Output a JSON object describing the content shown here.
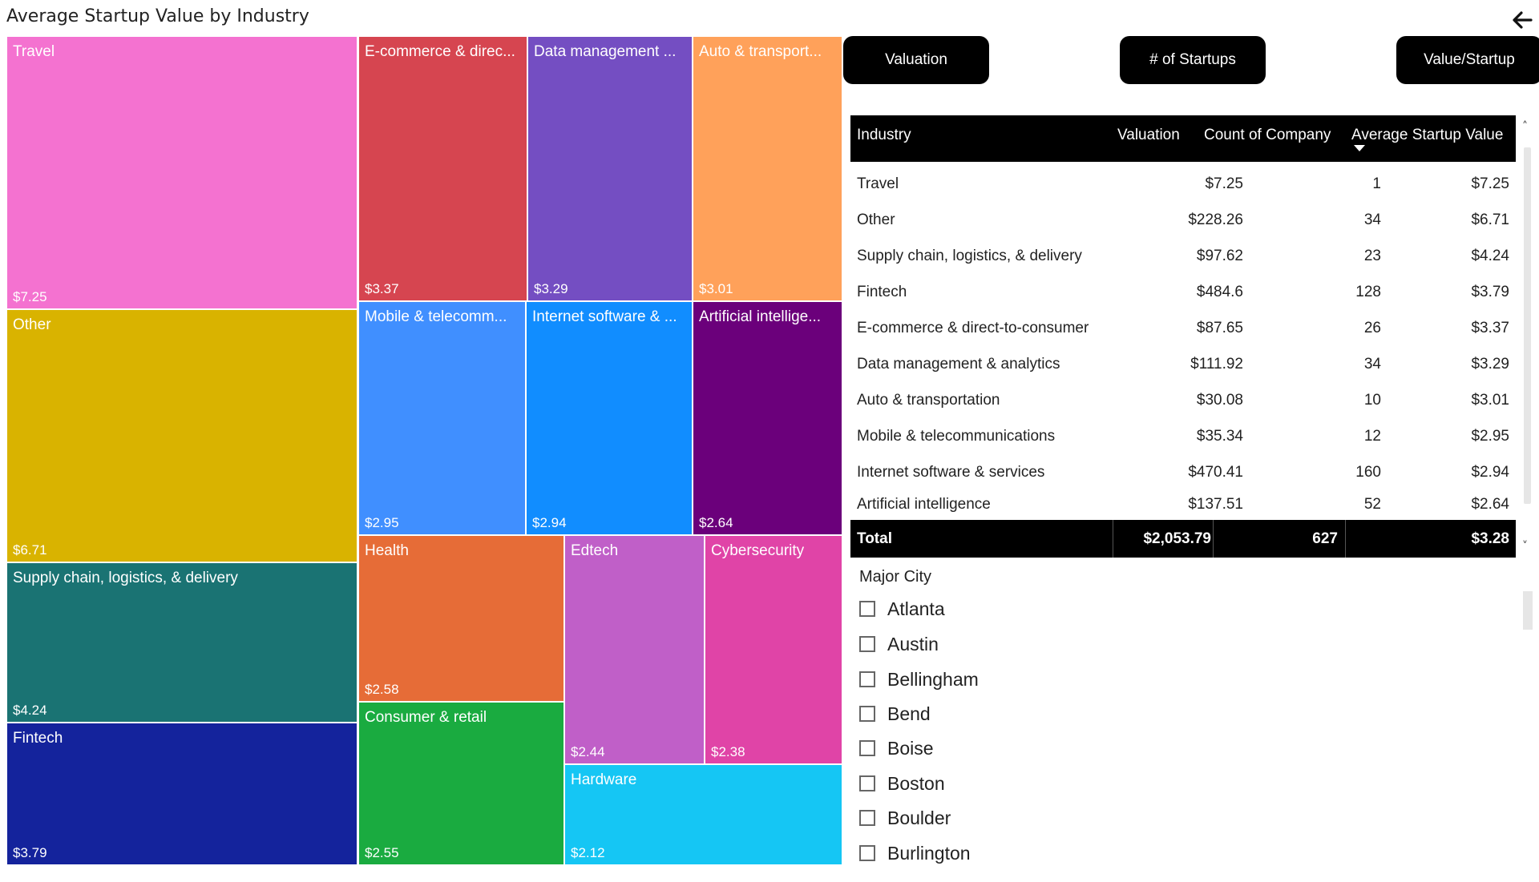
{
  "title": "Average Startup Value by Industry",
  "nav": {
    "back_icon": "arrow-left-icon"
  },
  "buttons": {
    "valuation": "Valuation",
    "startups": "# of Startups",
    "value_per_startup": "Value/Startup"
  },
  "treemap": [
    {
      "label": "Travel",
      "value": "$7.25",
      "color": "#F472D0"
    },
    {
      "label": "Other",
      "value": "$6.71",
      "color": "#D9B300"
    },
    {
      "label": "Supply chain, logistics, & delivery",
      "value": "$4.24",
      "color": "#1A7373"
    },
    {
      "label": "Fintech",
      "value": "$3.79",
      "color": "#14239C"
    },
    {
      "label": "E-commerce & direc...",
      "value": "$3.37",
      "color": "#D64550"
    },
    {
      "label": "Data management ...",
      "value": "$3.29",
      "color": "#744EC2"
    },
    {
      "label": "Auto & transport...",
      "value": "$3.01",
      "color": "#FFA15A"
    },
    {
      "label": "Mobile & telecomm...",
      "value": "$2.95",
      "color": "#408FFF"
    },
    {
      "label": "Internet software & ...",
      "value": "$2.94",
      "color": "#118DFF"
    },
    {
      "label": "Artificial intellige...",
      "value": "$2.64",
      "color": "#6B007B"
    },
    {
      "label": "Health",
      "value": "$2.58",
      "color": "#E66C37"
    },
    {
      "label": "Consumer & retail",
      "value": "$2.55",
      "color": "#1AAB40"
    },
    {
      "label": "Edtech",
      "value": "$2.44",
      "color": "#C05FC8"
    },
    {
      "label": "Cybersecurity",
      "value": "$2.38",
      "color": "#E044A7"
    },
    {
      "label": "Hardware",
      "value": "$2.12",
      "color": "#15C6F4"
    }
  ],
  "table": {
    "headers": [
      "Industry",
      "Valuation",
      "Count of Company",
      "Average Startup Value"
    ],
    "rows": [
      [
        "Travel",
        "$7.25",
        "1",
        "$7.25"
      ],
      [
        "Other",
        "$228.26",
        "34",
        "$6.71"
      ],
      [
        "Supply chain, logistics, & delivery",
        "$97.62",
        "23",
        "$4.24"
      ],
      [
        "Fintech",
        "$484.6",
        "128",
        "$3.79"
      ],
      [
        "E-commerce & direct-to-consumer",
        "$87.65",
        "26",
        "$3.37"
      ],
      [
        "Data management & analytics",
        "$111.92",
        "34",
        "$3.29"
      ],
      [
        "Auto & transportation",
        "$30.08",
        "10",
        "$3.01"
      ],
      [
        "Mobile & telecommunications",
        "$35.34",
        "12",
        "$2.95"
      ],
      [
        "Internet software & services",
        "$470.41",
        "160",
        "$2.94"
      ],
      [
        "Artificial intelligence",
        "$137.51",
        "52",
        "$2.64"
      ]
    ],
    "total": [
      "Total",
      "$2,053.79",
      "627",
      "$3.28"
    ]
  },
  "slicer": {
    "title": "Major City",
    "items": [
      "Atlanta",
      "Austin",
      "Bellingham",
      "Bend",
      "Boise",
      "Boston",
      "Boulder",
      "Burlington"
    ]
  }
}
